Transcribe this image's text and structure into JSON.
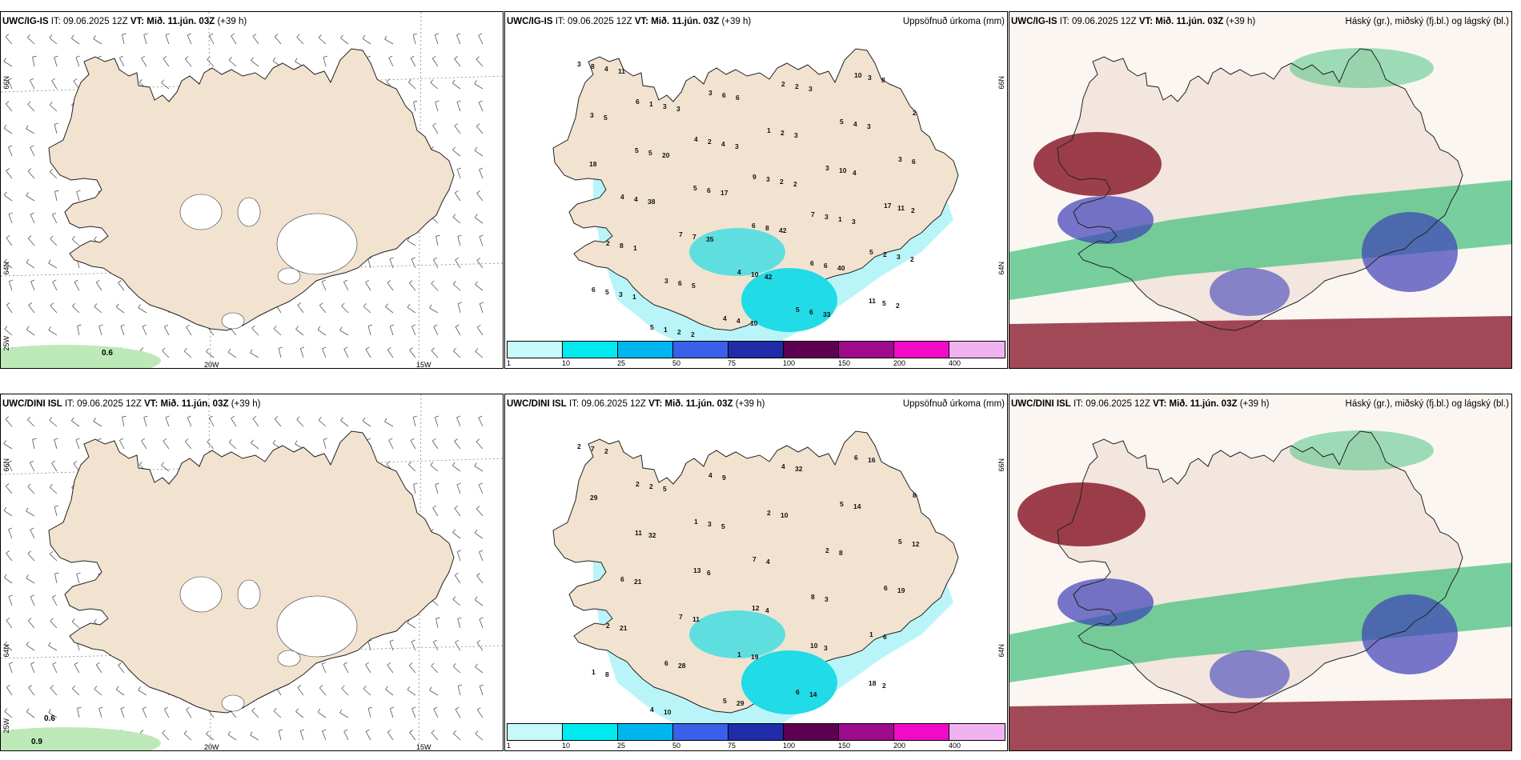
{
  "rows": [
    {
      "model": "UWC/IG-IS",
      "it": "IT: 09.06.2025 12Z",
      "vt": "VT: Mið. 11.jún. 03Z",
      "lead": "(+39 h)",
      "grid": {
        "lat66": "66N",
        "lat64": "64N",
        "lon25": "25W",
        "lon20": "20W",
        "lon15": "15W"
      },
      "contour_labels": [
        "0.6"
      ],
      "precip_values": [
        "3",
        "6",
        "4",
        "9",
        "7",
        "5",
        "6",
        "5",
        "3",
        "1",
        "3",
        "17",
        "2",
        "3",
        "4",
        "2",
        "5",
        "3",
        "4",
        "7",
        "4",
        "5",
        "10",
        "2",
        "5",
        "5",
        "6",
        "6",
        "11",
        "8",
        "1",
        "2",
        "3",
        "3",
        "2",
        "5",
        "1",
        "6",
        "2",
        "10",
        "11",
        "8",
        "6",
        "4",
        "2",
        "4",
        "6",
        "4",
        "7",
        "10",
        "6",
        "3",
        "3",
        "5",
        "6",
        "8",
        "6",
        "5",
        "4",
        "3",
        "4",
        "2",
        "1",
        "3",
        "3",
        "2",
        "6",
        "3",
        "4",
        "2",
        "1",
        "5",
        "10",
        "3",
        "3",
        "18",
        "38",
        "35",
        "42",
        "33",
        "8",
        "5",
        "20",
        "17",
        "42",
        "40",
        "2",
        "11",
        "3",
        "3",
        "2",
        "3",
        "2",
        "1",
        "2"
      ]
    },
    {
      "model": "UWC/DINI ISL",
      "it": "IT: 09.06.2025 12Z",
      "vt": "VT: Mið. 11.jún. 03Z",
      "lead": "(+39 h)",
      "grid": {
        "lat66": "66N",
        "lat64": "64N",
        "lon25": "25W",
        "lon20": "20W",
        "lon15": "15W"
      },
      "contour_labels": [
        "0.6",
        "0.9"
      ],
      "precip_values": [
        "2",
        "2",
        "1",
        "7",
        "8",
        "1",
        "1",
        "4",
        "4",
        "2",
        "2",
        "6",
        "2",
        "6",
        "5",
        "4",
        "5",
        "5",
        "6",
        "7",
        "1",
        "6",
        "6",
        "8",
        "11",
        "13",
        "12",
        "10",
        "18",
        "7",
        "2",
        "3",
        "4",
        "3",
        "6",
        "8",
        "10",
        "9",
        "10",
        "8",
        "19",
        "21",
        "28",
        "29",
        "32",
        "14",
        "12",
        "21",
        "11",
        "19",
        "14",
        "16",
        "29",
        "32",
        "6",
        "4",
        "3",
        "2",
        "2",
        "5",
        "5"
      ]
    }
  ],
  "precip": {
    "title": "Uppsöfnuð úrkoma (mm)",
    "colorbar": {
      "labels": [
        "1",
        "10",
        "25",
        "50",
        "75",
        "100",
        "150",
        "200",
        "400"
      ],
      "colors": [
        "#c7f9fb",
        "#00e9ef",
        "#00b6ee",
        "#3a5fe8",
        "#1f2ba8",
        "#5e0050",
        "#9e0b8c",
        "#f10bc8",
        "#f1b2f1"
      ]
    }
  },
  "cloud": {
    "title": "Háský (gr.), miðský (fj.bl.) og lágský (bl.)"
  },
  "colors": {
    "land": "#f2e3d0",
    "coast": "#222222",
    "glacier": "#ffffff",
    "precip_light": "#b9f5f8",
    "precip_mid": "#21dbe6",
    "high_cloud": "#3fbf7a",
    "mid_cloud": "#8b1e2e",
    "low_cloud": "#3d3fb8"
  }
}
